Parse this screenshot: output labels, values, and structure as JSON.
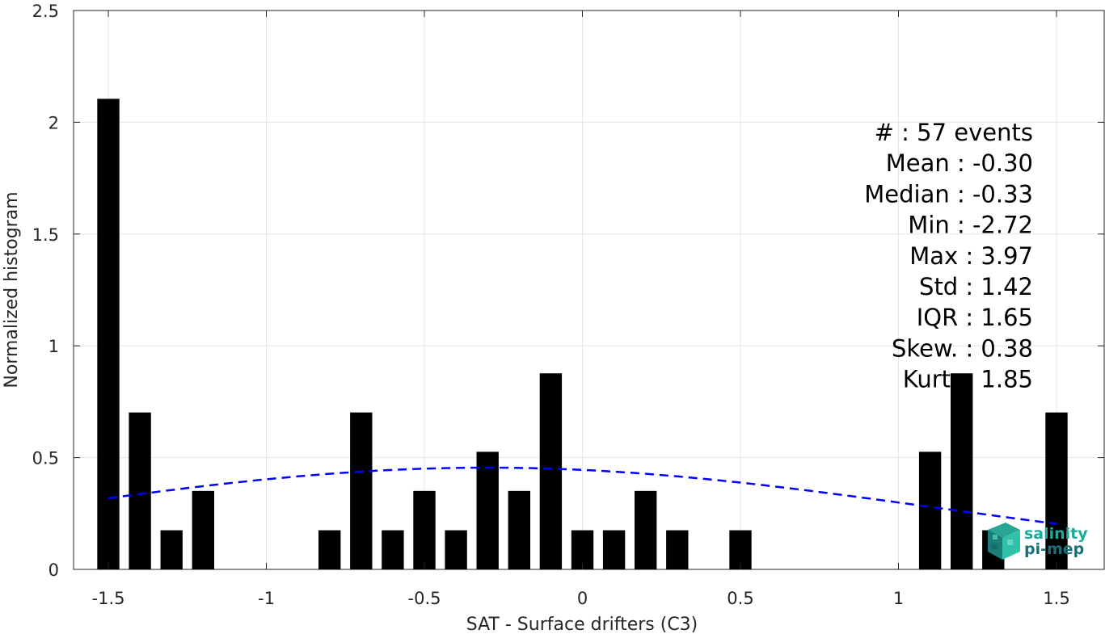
{
  "chart_data": {
    "type": "bar",
    "xlabel": "SAT - Surface drifters (C3)",
    "ylabel": "Normalized histogram",
    "xlim": [
      -1.55,
      1.65
    ],
    "ylim": [
      0,
      2.5
    ],
    "xticks": [
      "-1.5",
      "-1",
      "-0.5",
      "0",
      "0.5",
      "1",
      "1.5"
    ],
    "yticks": [
      "0",
      "0.5",
      "1",
      "1.5",
      "2",
      "2.5"
    ],
    "grid": true,
    "bin_width": 0.1,
    "x": [
      -1.5,
      -1.4,
      -1.3,
      -1.2,
      -1.1,
      -1.0,
      -0.9,
      -0.8,
      -0.7,
      -0.6,
      -0.5,
      -0.4,
      -0.3,
      -0.2,
      -0.1,
      0.0,
      0.1,
      0.2,
      0.3,
      0.4,
      0.5,
      0.6,
      0.7,
      0.8,
      0.9,
      1.0,
      1.1,
      1.2,
      1.3,
      1.4,
      1.5
    ],
    "values": [
      2.105,
      0.702,
      0.175,
      0.351,
      0,
      0,
      0,
      0.175,
      0.702,
      0.175,
      0.351,
      0.175,
      0.526,
      0.351,
      0.877,
      0.175,
      0.175,
      0.351,
      0.175,
      0,
      0.175,
      0,
      0,
      0,
      0,
      0,
      0.526,
      0.877,
      0.175,
      0,
      0.702
    ],
    "bar_color": "#000000",
    "fit_curve": {
      "style": "dashed",
      "color": "#0000ff",
      "mean": -0.3,
      "std": 1.42,
      "peak": 0.455,
      "x_range": [
        -1.5,
        1.5
      ]
    },
    "stats": [
      "#  : 57 events",
      "Mean : -0.30",
      "Median : -0.33",
      "Min : -2.72",
      "Max : 3.97",
      "Std : 1.42",
      "IQR : 1.65",
      "Skew. : 0.38",
      "Kurt. : 1.85"
    ]
  },
  "logo": {
    "line1": "salinity",
    "line2": "pi-mep",
    "color1": "#1aab9b",
    "color2": "#1b6f7a"
  }
}
